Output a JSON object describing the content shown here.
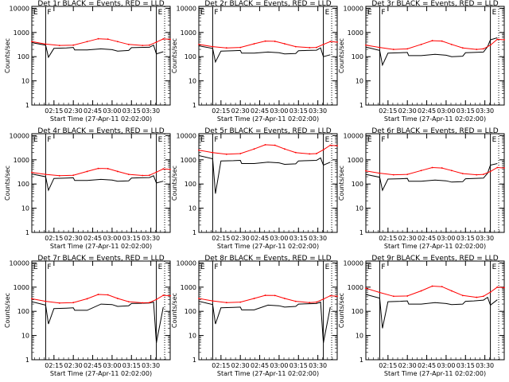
{
  "figure": {
    "colors": {
      "events": "#000000",
      "lld": "#ff0000",
      "frame": "#000000"
    },
    "x_tick_labels": [
      "02:15",
      "02:30",
      "02:45",
      "03:00",
      "03:15",
      "03:30"
    ],
    "x_axis_label": "Start Time (27-Apr-11 02:02:00)",
    "y_axis_label": "Counts/sec",
    "y_tick_labels": [
      "1",
      "10",
      "100",
      "1000",
      "10000"
    ],
    "markers": {
      "left": "E",
      "right_top": "E",
      "right_bottom": "F"
    }
  },
  "chart_data": [
    {
      "type": "line",
      "title": "Det 1r BLACK = Events, RED = LLD",
      "xlabel": "Start Time (27-Apr-11 02:02:00)",
      "ylabel": "Counts/sec",
      "yscale": "log",
      "ylim": [
        1,
        12000
      ],
      "xlim": [
        0,
        100
      ],
      "series": [
        {
          "name": "BLACK = Events",
          "color": "#000000",
          "x": [
            0,
            10,
            12,
            16,
            25,
            30,
            31,
            40,
            50,
            58,
            62,
            70,
            72,
            78,
            85,
            88,
            90,
            95
          ],
          "y": [
            380,
            300,
            95,
            220,
            230,
            240,
            190,
            190,
            210,
            195,
            170,
            180,
            235,
            240,
            245,
            300,
            130,
            160
          ]
        },
        {
          "name": "RED = LLD",
          "color": "#ff0000",
          "x": [
            0,
            10,
            20,
            30,
            40,
            48,
            55,
            62,
            70,
            80,
            85,
            90,
            95,
            100
          ],
          "y": [
            420,
            330,
            290,
            300,
            420,
            550,
            530,
            420,
            320,
            290,
            300,
            400,
            540,
            520
          ]
        }
      ]
    },
    {
      "type": "line",
      "title": "Det 2r BLACK = Events, RED = LLD",
      "xlabel": "Start Time (27-Apr-11 02:02:00)",
      "ylabel": "Counts/sec",
      "yscale": "log",
      "ylim": [
        1,
        12000
      ],
      "xlim": [
        0,
        100
      ],
      "series": [
        {
          "name": "BLACK = Events",
          "color": "#000000",
          "x": [
            0,
            10,
            12,
            16,
            25,
            30,
            31,
            40,
            50,
            58,
            62,
            70,
            72,
            78,
            85,
            88,
            90,
            95
          ],
          "y": [
            280,
            220,
            60,
            170,
            175,
            180,
            140,
            140,
            155,
            145,
            130,
            135,
            175,
            180,
            185,
            230,
            100,
            120
          ]
        },
        {
          "name": "RED = LLD",
          "color": "#ff0000",
          "x": [
            0,
            10,
            20,
            30,
            40,
            48,
            55,
            62,
            70,
            80,
            85,
            90,
            95,
            100
          ],
          "y": [
            320,
            260,
            230,
            240,
            340,
            440,
            430,
            340,
            260,
            235,
            240,
            320,
            420,
            400
          ]
        }
      ]
    },
    {
      "type": "line",
      "title": "Det 3r BLACK = Events, RED = LLD",
      "xlabel": "Start Time (27-Apr-11 02:02:00)",
      "ylabel": "Counts/sec",
      "yscale": "log",
      "ylim": [
        1,
        12000
      ],
      "xlim": [
        0,
        100
      ],
      "series": [
        {
          "name": "BLACK = Events",
          "color": "#000000",
          "x": [
            0,
            10,
            12,
            16,
            25,
            30,
            31,
            40,
            50,
            58,
            62,
            70,
            72,
            78,
            85,
            88,
            90,
            95
          ],
          "y": [
            250,
            180,
            45,
            140,
            145,
            150,
            110,
            110,
            125,
            115,
            100,
            105,
            145,
            150,
            155,
            260,
            500,
            600
          ]
        },
        {
          "name": "RED = LLD",
          "color": "#ff0000",
          "x": [
            0,
            10,
            20,
            30,
            40,
            48,
            55,
            62,
            70,
            80,
            85,
            90,
            95,
            100
          ],
          "y": [
            300,
            240,
            200,
            210,
            320,
            460,
            440,
            320,
            230,
            200,
            210,
            300,
            520,
            500
          ]
        }
      ]
    },
    {
      "type": "line",
      "title": "Det 4r BLACK = Events, RED = LLD",
      "xlabel": "Start Time (27-Apr-11 02:02:00)",
      "ylabel": "Counts/sec",
      "yscale": "log",
      "ylim": [
        1,
        12000
      ],
      "xlim": [
        0,
        100
      ],
      "series": [
        {
          "name": "BLACK = Events",
          "color": "#000000",
          "x": [
            0,
            10,
            12,
            16,
            25,
            30,
            31,
            40,
            50,
            58,
            62,
            70,
            72,
            78,
            85,
            88,
            90,
            95
          ],
          "y": [
            260,
            200,
            55,
            170,
            175,
            180,
            140,
            140,
            155,
            145,
            130,
            135,
            175,
            180,
            185,
            220,
            110,
            130
          ]
        },
        {
          "name": "RED = LLD",
          "color": "#ff0000",
          "x": [
            0,
            10,
            20,
            30,
            40,
            48,
            55,
            62,
            70,
            80,
            85,
            90,
            95,
            100
          ],
          "y": [
            300,
            250,
            220,
            230,
            330,
            440,
            430,
            330,
            250,
            225,
            230,
            310,
            420,
            400
          ]
        }
      ]
    },
    {
      "type": "line",
      "title": "Det 5r BLACK = Events, RED = LLD",
      "xlabel": "Start Time (27-Apr-11 02:02:00)",
      "ylabel": "Counts/sec",
      "yscale": "log",
      "ylim": [
        1,
        12000
      ],
      "xlim": [
        0,
        100
      ],
      "series": [
        {
          "name": "BLACK = Events",
          "color": "#000000",
          "x": [
            0,
            10,
            12,
            16,
            25,
            30,
            31,
            40,
            50,
            58,
            62,
            70,
            72,
            78,
            85,
            88,
            90,
            95
          ],
          "y": [
            1500,
            1100,
            40,
            900,
            920,
            950,
            700,
            700,
            800,
            750,
            650,
            680,
            900,
            920,
            950,
            1200,
            600,
            800
          ]
        },
        {
          "name": "RED = LLD",
          "color": "#ff0000",
          "x": [
            0,
            10,
            20,
            30,
            40,
            48,
            55,
            62,
            70,
            80,
            85,
            90,
            95,
            100
          ],
          "y": [
            2500,
            2000,
            1700,
            1800,
            2800,
            4200,
            4000,
            2800,
            2000,
            1750,
            1800,
            2600,
            4000,
            3800
          ]
        }
      ]
    },
    {
      "type": "line",
      "title": "Det 6r BLACK = Events, RED = LLD",
      "xlabel": "Start Time (27-Apr-11 02:02:00)",
      "ylabel": "Counts/sec",
      "yscale": "log",
      "ylim": [
        1,
        12000
      ],
      "xlim": [
        0,
        100
      ],
      "series": [
        {
          "name": "BLACK = Events",
          "color": "#000000",
          "x": [
            0,
            10,
            12,
            16,
            25,
            30,
            31,
            40,
            50,
            58,
            62,
            70,
            72,
            78,
            85,
            88,
            90,
            95
          ],
          "y": [
            250,
            190,
            55,
            160,
            165,
            170,
            130,
            130,
            145,
            135,
            120,
            125,
            165,
            170,
            175,
            280,
            600,
            700
          ]
        },
        {
          "name": "RED = LLD",
          "color": "#ff0000",
          "x": [
            0,
            10,
            20,
            30,
            40,
            48,
            55,
            62,
            70,
            80,
            85,
            90,
            95,
            100
          ],
          "y": [
            350,
            280,
            240,
            250,
            360,
            480,
            460,
            360,
            270,
            240,
            250,
            330,
            480,
            460
          ]
        }
      ]
    },
    {
      "type": "line",
      "title": "Det 7r BLACK = Events, RED = LLD",
      "xlabel": "Start Time (27-Apr-11 02:02:00)",
      "ylabel": "Counts/sec",
      "yscale": "log",
      "ylim": [
        1,
        12000
      ],
      "xlim": [
        0,
        100
      ],
      "series": [
        {
          "name": "BLACK = Events",
          "color": "#000000",
          "x": [
            0,
            10,
            12,
            16,
            25,
            30,
            31,
            40,
            50,
            58,
            62,
            70,
            72,
            78,
            85,
            88,
            90,
            95
          ],
          "y": [
            250,
            180,
            30,
            130,
            135,
            140,
            110,
            110,
            200,
            190,
            160,
            170,
            210,
            215,
            220,
            240,
            5,
            150
          ]
        },
        {
          "name": "RED = LLD",
          "color": "#ff0000",
          "x": [
            0,
            10,
            20,
            30,
            40,
            48,
            55,
            62,
            70,
            80,
            85,
            90,
            95,
            100
          ],
          "y": [
            330,
            260,
            220,
            230,
            330,
            500,
            480,
            340,
            250,
            225,
            230,
            310,
            460,
            440
          ]
        }
      ]
    },
    {
      "type": "line",
      "title": "Det 8r BLACK = Events, RED = LLD",
      "xlabel": "Start Time (27-Apr-11 02:02:00)",
      "ylabel": "Counts/sec",
      "yscale": "log",
      "ylim": [
        1,
        12000
      ],
      "xlim": [
        0,
        100
      ],
      "series": [
        {
          "name": "BLACK = Events",
          "color": "#000000",
          "x": [
            0,
            10,
            12,
            16,
            25,
            30,
            31,
            40,
            50,
            58,
            62,
            70,
            72,
            78,
            85,
            88,
            90,
            95
          ],
          "y": [
            260,
            190,
            30,
            140,
            145,
            150,
            115,
            115,
            180,
            170,
            150,
            160,
            200,
            205,
            210,
            240,
            5,
            150
          ]
        },
        {
          "name": "RED = LLD",
          "color": "#ff0000",
          "x": [
            0,
            10,
            20,
            30,
            40,
            48,
            55,
            62,
            70,
            80,
            85,
            90,
            95,
            100
          ],
          "y": [
            340,
            270,
            230,
            240,
            340,
            460,
            450,
            340,
            260,
            230,
            240,
            320,
            440,
            420
          ]
        }
      ]
    },
    {
      "type": "line",
      "title": "Det 9r BLACK = Events, RED = LLD",
      "xlabel": "Start Time (27-Apr-11 02:02:00)",
      "ylabel": "Counts/sec",
      "yscale": "log",
      "ylim": [
        1,
        12000
      ],
      "xlim": [
        0,
        100
      ],
      "series": [
        {
          "name": "BLACK = Events",
          "color": "#000000",
          "x": [
            0,
            10,
            12,
            16,
            25,
            30,
            31,
            40,
            50,
            58,
            62,
            70,
            72,
            78,
            85,
            88,
            90,
            95
          ],
          "y": [
            500,
            350,
            20,
            250,
            260,
            270,
            200,
            200,
            230,
            210,
            190,
            200,
            260,
            270,
            290,
            380,
            180,
            300
          ]
        },
        {
          "name": "RED = LLD",
          "color": "#ff0000",
          "x": [
            0,
            10,
            20,
            30,
            40,
            48,
            55,
            62,
            70,
            80,
            85,
            90,
            95,
            100
          ],
          "y": [
            900,
            600,
            420,
            430,
            700,
            1100,
            1050,
            700,
            450,
            380,
            420,
            620,
            1000,
            950
          ]
        }
      ]
    }
  ]
}
